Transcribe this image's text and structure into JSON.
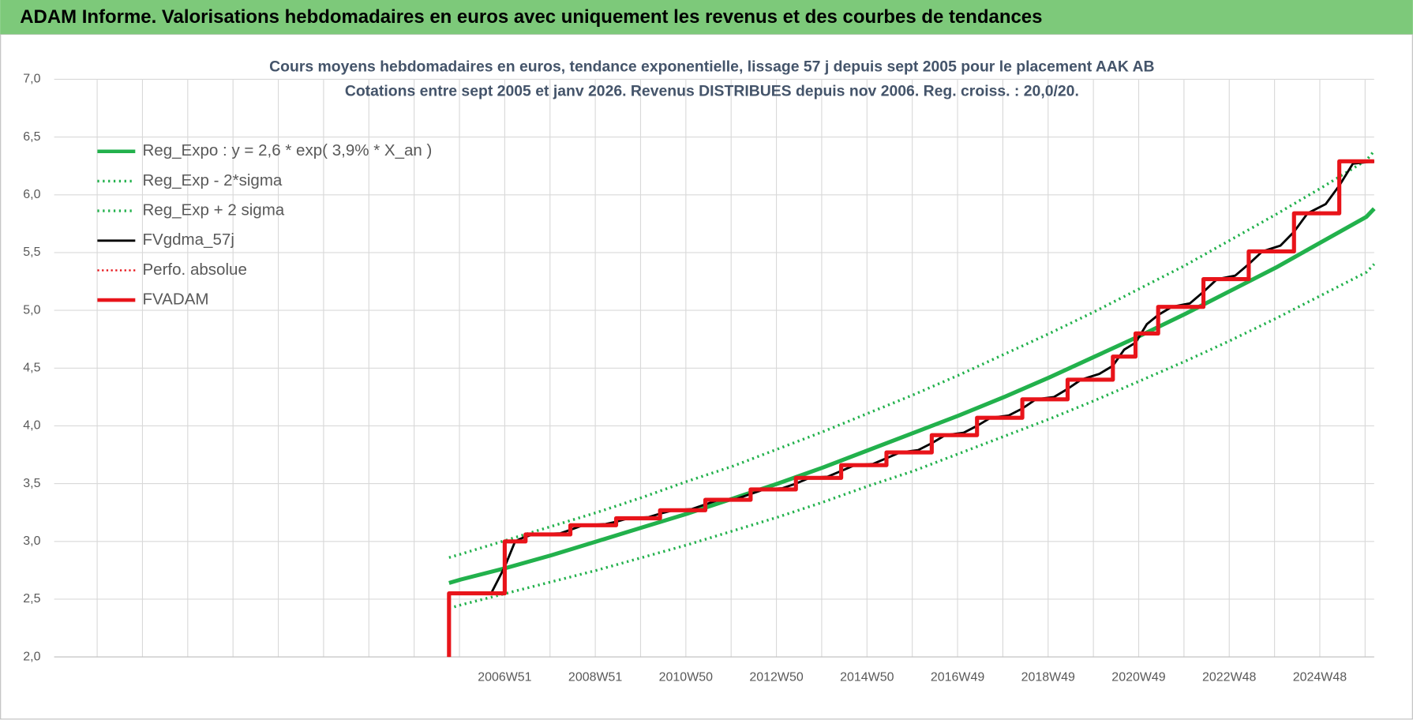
{
  "header": {
    "title": "ADAM Informe. Valorisations hebdomadaires en euros avec uniquement les revenus et des courbes de tendances"
  },
  "chart_data": {
    "type": "line",
    "title": "Cours moyens hebdomadaires en euros, tendance exponentielle, lissage 57 j depuis sept 2005 pour le placement AAK AB",
    "subtitle": "Cotations entre sept 2005 et janv 2026. Revenus DISTRIBUES depuis nov 2006. Reg. croiss. : 20,0/20.",
    "xlim": [
      1997.02,
      2026.17
    ],
    "xticks": [
      {
        "value": 2006.97,
        "label": "2006W51"
      },
      {
        "value": 2008.97,
        "label": "2008W51"
      },
      {
        "value": 2010.97,
        "label": "2010W50"
      },
      {
        "value": 2012.97,
        "label": "2012W50"
      },
      {
        "value": 2014.97,
        "label": "2014W50"
      },
      {
        "value": 2016.97,
        "label": "2016W49"
      },
      {
        "value": 2018.97,
        "label": "2018W49"
      },
      {
        "value": 2020.97,
        "label": "2020W49"
      },
      {
        "value": 2022.97,
        "label": "2022W48"
      },
      {
        "value": 2024.97,
        "label": "2024W48"
      }
    ],
    "xgrid": [
      1997.97,
      1998.97,
      1999.97,
      2000.97,
      2001.97,
      2002.97,
      2003.97,
      2004.97,
      2005.97,
      2007.97,
      2009.97,
      2011.97,
      2013.97,
      2015.97,
      2017.97,
      2019.97,
      2021.97,
      2023.97,
      2025.97
    ],
    "ylim": [
      2,
      7
    ],
    "yticks": [
      {
        "value": 2,
        "label": "2,0"
      },
      {
        "value": 2.5,
        "label": "2,5"
      },
      {
        "value": 3,
        "label": "3,0"
      },
      {
        "value": 3.5,
        "label": "3,5"
      },
      {
        "value": 4,
        "label": "4,0"
      },
      {
        "value": 4.5,
        "label": "4,5"
      },
      {
        "value": 5,
        "label": "5,0"
      },
      {
        "value": 5.5,
        "label": "5,5"
      },
      {
        "value": 6,
        "label": "6,0"
      },
      {
        "value": 6.5,
        "label": "6,5"
      },
      {
        "value": 7,
        "label": "7,0"
      }
    ],
    "grid": true,
    "legend": "top-left",
    "series": [
      {
        "name": "Reg_Expo : y = 2,6 * exp( 3,9% *  X_an )",
        "color": "#22b14c",
        "width": 4.5,
        "dash": "none",
        "x": [
          2005.74,
          2006,
          2007,
          2008,
          2009,
          2010,
          2011,
          2012,
          2013,
          2014,
          2015,
          2016,
          2017,
          2018,
          2019,
          2020,
          2021,
          2022,
          2023,
          2024,
          2025,
          2026,
          2026.17
        ],
        "values": [
          2.64,
          2.67,
          2.77,
          2.88,
          3.0,
          3.12,
          3.24,
          3.37,
          3.5,
          3.64,
          3.79,
          3.94,
          4.09,
          4.25,
          4.42,
          4.6,
          4.78,
          4.97,
          5.17,
          5.37,
          5.59,
          5.81,
          5.88
        ]
      },
      {
        "name": "Reg_Exp - 2*sigma",
        "color": "#22b14c",
        "width": 3,
        "dash": "2 4",
        "x": [
          2005.74,
          2006,
          2007,
          2008,
          2009,
          2010,
          2011,
          2012,
          2013,
          2014,
          2015,
          2016,
          2017,
          2018,
          2019,
          2020,
          2021,
          2022,
          2023,
          2024,
          2025,
          2026,
          2026.17
        ],
        "values": [
          2.42,
          2.45,
          2.55,
          2.65,
          2.75,
          2.86,
          2.97,
          3.09,
          3.21,
          3.34,
          3.48,
          3.61,
          3.76,
          3.91,
          4.06,
          4.22,
          4.39,
          4.56,
          4.74,
          4.93,
          5.13,
          5.33,
          5.4
        ]
      },
      {
        "name": "Reg_Exp + 2 sigma",
        "color": "#22b14c",
        "width": 3,
        "dash": "2 4",
        "x": [
          2005.74,
          2006,
          2007,
          2008,
          2009,
          2010,
          2011,
          2012,
          2013,
          2014,
          2015,
          2016,
          2017,
          2018,
          2019,
          2020,
          2021,
          2022,
          2023,
          2024,
          2025,
          2026,
          2026.17
        ],
        "values": [
          2.86,
          2.89,
          3.01,
          3.13,
          3.25,
          3.38,
          3.52,
          3.65,
          3.8,
          3.95,
          4.11,
          4.27,
          4.44,
          4.62,
          4.8,
          4.99,
          5.19,
          5.39,
          5.61,
          5.83,
          6.06,
          6.3,
          6.38
        ]
      },
      {
        "name": "Perfo. absolue",
        "color": "#e8141a",
        "width": 2,
        "dash": "2 3",
        "x": [
          2005.74,
          2005.74,
          2006.97,
          2006.97,
          2007.43,
          2007.43,
          2008.42,
          2008.42,
          2009.43,
          2009.43,
          2010.4,
          2010.4,
          2011.4,
          2011.4,
          2012.4,
          2012.4,
          2013.4,
          2013.4,
          2014.4,
          2014.4,
          2015.4,
          2015.4,
          2016.4,
          2016.4,
          2017.4,
          2017.4,
          2018.4,
          2018.4,
          2019.4,
          2019.4,
          2020.4,
          2020.4,
          2020.9,
          2020.9,
          2021.4,
          2021.4,
          2022.4,
          2022.4,
          2023.4,
          2023.4,
          2024.4,
          2024.4,
          2025.4,
          2025.4,
          2026.17
        ],
        "values": [
          2.0,
          2.55,
          2.55,
          3.0,
          3.0,
          3.06,
          3.06,
          3.14,
          3.14,
          3.2,
          3.2,
          3.27,
          3.27,
          3.36,
          3.36,
          3.45,
          3.45,
          3.55,
          3.55,
          3.66,
          3.66,
          3.77,
          3.77,
          3.92,
          3.92,
          4.07,
          4.07,
          4.23,
          4.23,
          4.4,
          4.4,
          4.6,
          4.6,
          4.8,
          4.8,
          5.03,
          5.03,
          5.27,
          5.27,
          5.51,
          5.51,
          5.84,
          5.84,
          6.29,
          6.29
        ]
      },
      {
        "name": "FVgdma_57j",
        "color": "#000000",
        "width": 2.5,
        "dash": "none",
        "x": [
          2005.74,
          2006.67,
          2006.97,
          2007.2,
          2007.3,
          2007.43,
          2007.6,
          2008.2,
          2008.42,
          2008.7,
          2009.2,
          2009.43,
          2009.7,
          2010.15,
          2010.4,
          2010.7,
          2011.1,
          2011.4,
          2011.7,
          2012.1,
          2012.4,
          2012.7,
          2013.1,
          2013.4,
          2013.7,
          2014.1,
          2014.4,
          2014.7,
          2015.1,
          2015.4,
          2015.7,
          2016.1,
          2016.4,
          2016.7,
          2017.1,
          2017.4,
          2017.7,
          2018.1,
          2018.4,
          2018.7,
          2019.1,
          2019.4,
          2019.7,
          2020.1,
          2020.4,
          2020.65,
          2020.9,
          2021.15,
          2021.4,
          2021.7,
          2022.1,
          2022.4,
          2022.7,
          2023.1,
          2023.4,
          2023.7,
          2024.1,
          2024.4,
          2024.7,
          2025.1,
          2025.4,
          2025.7,
          2026.17
        ],
        "values": [
          2.55,
          2.55,
          2.78,
          3.0,
          3.02,
          3.04,
          3.06,
          3.07,
          3.1,
          3.14,
          3.15,
          3.17,
          3.2,
          3.21,
          3.24,
          3.27,
          3.28,
          3.32,
          3.36,
          3.37,
          3.41,
          3.45,
          3.46,
          3.5,
          3.55,
          3.56,
          3.61,
          3.66,
          3.67,
          3.72,
          3.77,
          3.79,
          3.85,
          3.92,
          3.94,
          4.0,
          4.07,
          4.09,
          4.15,
          4.23,
          4.25,
          4.32,
          4.4,
          4.45,
          4.52,
          4.66,
          4.72,
          4.88,
          4.96,
          5.03,
          5.06,
          5.16,
          5.27,
          5.3,
          5.4,
          5.51,
          5.56,
          5.68,
          5.84,
          5.92,
          6.08,
          6.27,
          6.29
        ]
      },
      {
        "name": "FVADAM",
        "color": "#e8141a",
        "width": 4.5,
        "dash": "none",
        "x": [
          2005.74,
          2005.74,
          2006.97,
          2006.97,
          2007.43,
          2007.43,
          2008.42,
          2008.42,
          2009.43,
          2009.43,
          2010.4,
          2010.4,
          2011.4,
          2011.4,
          2012.4,
          2012.4,
          2013.4,
          2013.4,
          2014.4,
          2014.4,
          2015.4,
          2015.4,
          2016.4,
          2016.4,
          2017.4,
          2017.4,
          2018.4,
          2018.4,
          2019.4,
          2019.4,
          2020.4,
          2020.4,
          2020.9,
          2020.9,
          2021.4,
          2021.4,
          2022.4,
          2022.4,
          2023.4,
          2023.4,
          2024.4,
          2024.4,
          2025.4,
          2025.4,
          2026.17
        ],
        "values": [
          2.0,
          2.55,
          2.55,
          3.0,
          3.0,
          3.06,
          3.06,
          3.14,
          3.14,
          3.2,
          3.2,
          3.27,
          3.27,
          3.36,
          3.36,
          3.45,
          3.45,
          3.55,
          3.55,
          3.66,
          3.66,
          3.77,
          3.77,
          3.92,
          3.92,
          4.07,
          4.07,
          4.23,
          4.23,
          4.4,
          4.4,
          4.6,
          4.6,
          4.8,
          4.8,
          5.03,
          5.03,
          5.27,
          5.27,
          5.51,
          5.51,
          5.84,
          5.84,
          6.29,
          6.29
        ]
      }
    ],
    "legend_order": [
      0,
      1,
      2,
      4,
      3,
      5
    ]
  }
}
